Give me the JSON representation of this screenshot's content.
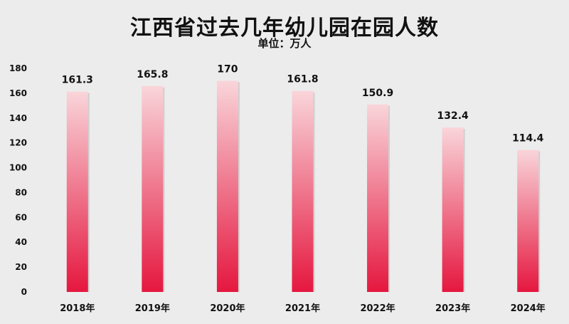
{
  "chart_data": {
    "type": "bar",
    "title": "江西省过去几年幼儿园在园人数",
    "subtitle": "单位：万人",
    "categories": [
      "2018年",
      "2019年",
      "2020年",
      "2021年",
      "2022年",
      "2023年",
      "2024年"
    ],
    "values": [
      161.3,
      165.8,
      170,
      161.8,
      150.9,
      132.4,
      114.4
    ],
    "data_labels": [
      "161.3",
      "165.8",
      "170",
      "161.8",
      "150.9",
      "132.4",
      "114.4"
    ],
    "y_ticks": [
      "0",
      "20",
      "40",
      "60",
      "80",
      "100",
      "120",
      "140",
      "160",
      "180"
    ],
    "ylim": [
      0,
      180
    ],
    "grid": false,
    "legend": "none",
    "bar_color_top": "#f9d5da",
    "bar_color_bottom": "#e5173f"
  }
}
